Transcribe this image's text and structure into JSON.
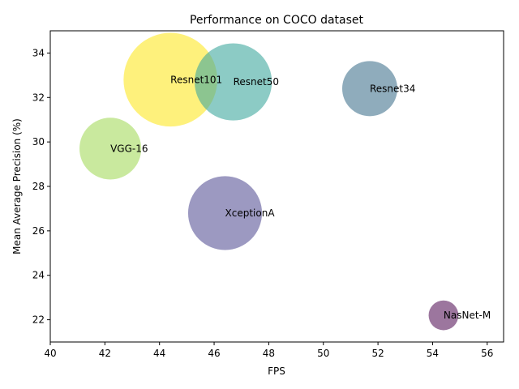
{
  "chart_data": {
    "type": "scatter",
    "title": "Performance on COCO dataset",
    "xlabel": "FPS",
    "ylabel": "Mean Average Precision (%)",
    "xlim": [
      40,
      56.6
    ],
    "ylim": [
      21,
      35
    ],
    "xticks": [
      40,
      42,
      44,
      46,
      48,
      50,
      52,
      54,
      56
    ],
    "yticks": [
      22,
      24,
      26,
      28,
      30,
      32,
      34
    ],
    "grid": false,
    "legend": "none",
    "bubble_alpha": 0.6,
    "points": [
      {
        "label": "Resnet101",
        "x": 44.4,
        "y": 32.8,
        "size": 170,
        "color": "#fde725"
      },
      {
        "label": "Resnet50",
        "x": 46.7,
        "y": 32.7,
        "size": 140,
        "color": "#3fa89e"
      },
      {
        "label": "Resnet34",
        "x": 51.7,
        "y": 32.4,
        "size": 100,
        "color": "#45758f"
      },
      {
        "label": "VGG-16",
        "x": 42.2,
        "y": 29.7,
        "size": 112,
        "color": "#a5db5e"
      },
      {
        "label": "XceptionA",
        "x": 46.4,
        "y": 26.8,
        "size": 134,
        "color": "#5a5598"
      },
      {
        "label": "NasNet-M",
        "x": 54.4,
        "y": 22.2,
        "size": 54,
        "color": "#5a1a5e"
      }
    ]
  }
}
